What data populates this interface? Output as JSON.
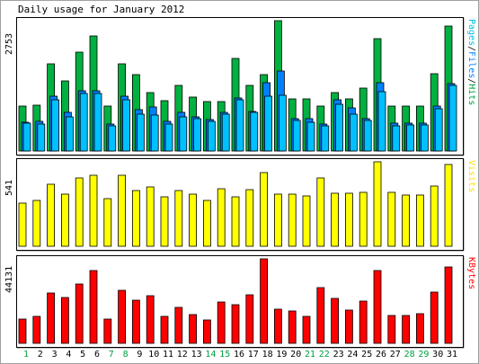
{
  "chart_data": {
    "type": "bar",
    "title": "Daily usage for January 2012",
    "days": [
      "1",
      "2",
      "3",
      "4",
      "5",
      "6",
      "7",
      "8",
      "9",
      "10",
      "11",
      "12",
      "13",
      "14",
      "15",
      "16",
      "17",
      "18",
      "19",
      "20",
      "21",
      "22",
      "23",
      "24",
      "25",
      "26",
      "27",
      "28",
      "29",
      "30",
      "31"
    ],
    "weekend_days": [
      "1",
      "7",
      "8",
      "14",
      "15",
      "21",
      "22",
      "28",
      "29"
    ],
    "panels": [
      {
        "id": "hits",
        "max_label": "2753",
        "ymax": 2753,
        "side_label": [
          {
            "text": "Pages",
            "color": "#00c0e0"
          },
          {
            "text": "/",
            "color": "#000000"
          },
          {
            "text": "Files",
            "color": "#0080ff"
          },
          {
            "text": "/",
            "color": "#000000"
          },
          {
            "text": "Hits",
            "color": "#00a040"
          }
        ],
        "series": [
          {
            "name": "Hits",
            "color": "#00b040",
            "values": [
              955,
              975,
              1850,
              1480,
              2090,
              2430,
              945,
              1850,
              1610,
              1230,
              1060,
              1390,
              1140,
              1050,
              1040,
              1950,
              1380,
              1610,
              2753,
              1100,
              1100,
              955,
              1230,
              1100,
              1320,
              2380,
              940,
              940,
              950,
              1630,
              2640
            ]
          },
          {
            "name": "Files",
            "color": "#0080ff",
            "values": [
              600,
              620,
              1150,
              820,
              1270,
              1270,
              570,
              1160,
              870,
              930,
              620,
              810,
              720,
              660,
              820,
              1120,
              840,
              1450,
              1690,
              690,
              680,
              570,
              1080,
              910,
              690,
              1440,
              590,
              590,
              590,
              950,
              1430
            ]
          },
          {
            "name": "Pages",
            "color": "#00c0ff",
            "values": [
              580,
              570,
              1080,
              720,
              1210,
              1220,
              530,
              1080,
              780,
              760,
              570,
              730,
              680,
              620,
              770,
              1080,
              810,
              1160,
              1170,
              650,
              610,
              530,
              980,
              780,
              640,
              1250,
              540,
              550,
              550,
              900,
              1390
            ]
          }
        ]
      },
      {
        "id": "visits",
        "max_label": "541",
        "ymax": 541,
        "side_label": [
          {
            "text": "Visits",
            "color": "#ffe000"
          }
        ],
        "series": [
          {
            "name": "Visits",
            "color": "#ffff00",
            "values": [
              277,
              293,
              399,
              336,
              437,
              456,
              303,
              456,
              356,
              377,
              317,
              356,
              331,
              294,
              368,
              316,
              360,
              472,
              335,
              335,
              323,
              435,
              341,
              342,
              344,
              541,
              343,
              330,
              330,
              388,
              524
            ]
          }
        ]
      },
      {
        "id": "kbytes",
        "max_label": "44131",
        "ymax": 44131,
        "side_label": [
          {
            "text": "KBytes",
            "color": "#ff0000"
          }
        ],
        "series": [
          {
            "name": "KBytes",
            "color": "#ff0000",
            "values": [
              12900,
              14200,
              26500,
              23800,
              31100,
              37800,
              12500,
              27900,
              22600,
              25100,
              13900,
              18900,
              15000,
              12300,
              21400,
              20200,
              25300,
              44131,
              17800,
              17000,
              14300,
              29300,
              23400,
              17400,
              22200,
              38000,
              14500,
              14400,
              15400,
              26800,
              40000
            ]
          }
        ]
      }
    ]
  }
}
